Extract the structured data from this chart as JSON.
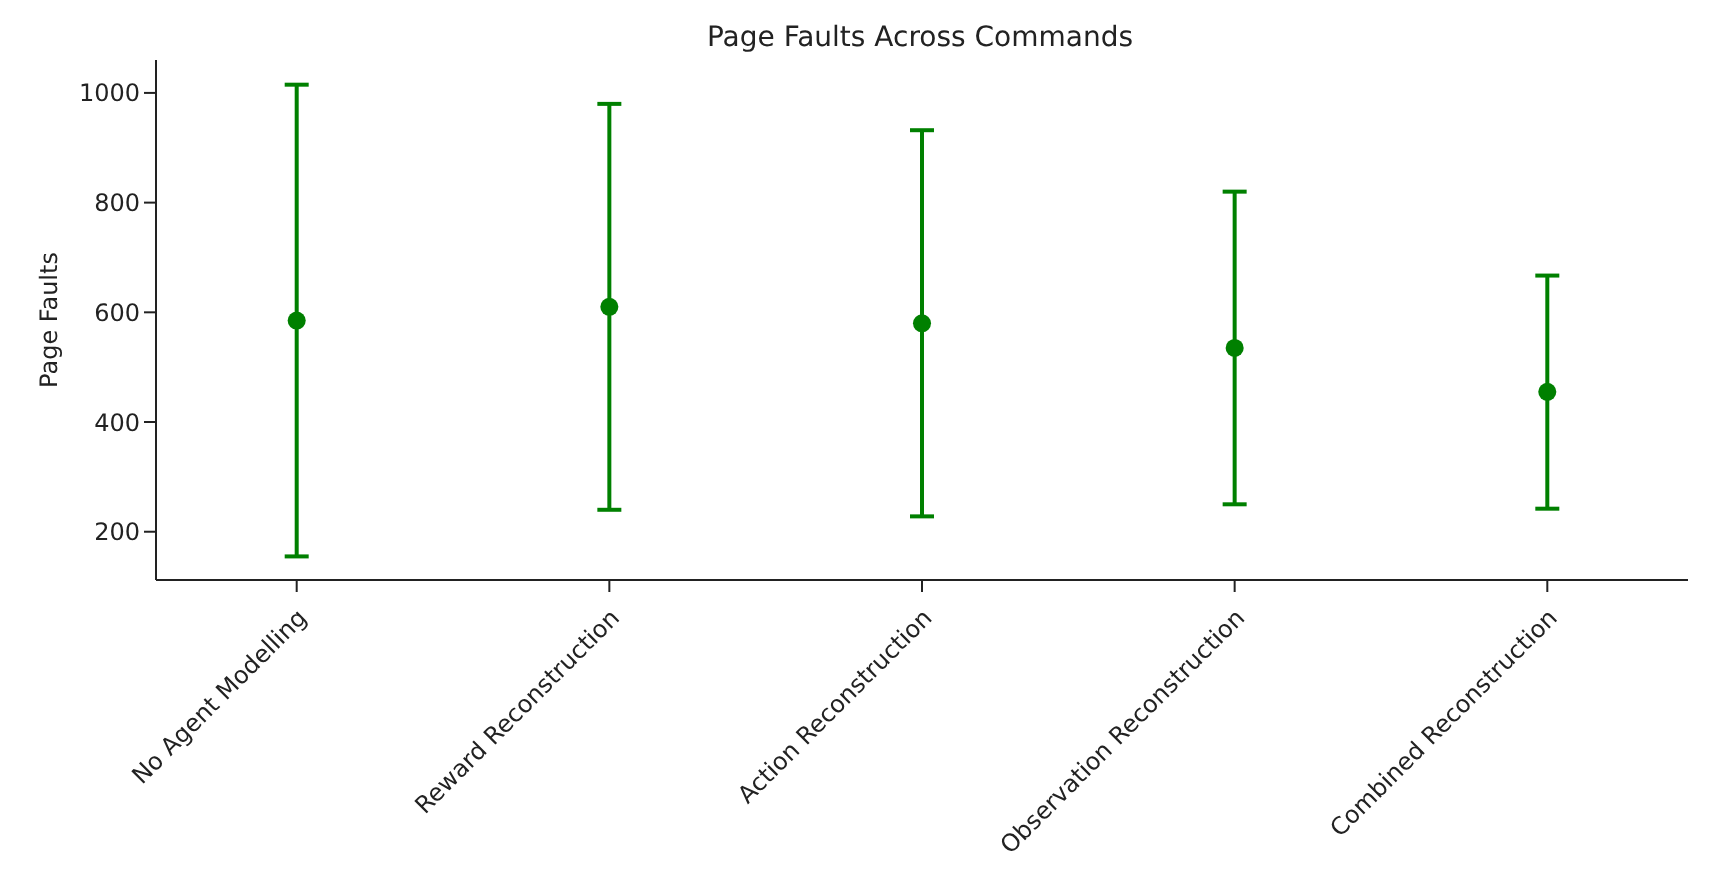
{
  "chart_data": {
    "type": "scatter",
    "title": "Page Faults Across Commands",
    "ylabel": "Page Faults",
    "categories": [
      "No Agent Modelling",
      "Reward Reconstruction",
      "Action Reconstruction",
      "Observation Reconstruction",
      "Combined Reconstruction"
    ],
    "series": [
      {
        "color": "#008000",
        "values": [
          585,
          610,
          580,
          535,
          455
        ],
        "errors": [
          [
            155,
            1015
          ],
          [
            240,
            980
          ],
          [
            228,
            932
          ],
          [
            250,
            820
          ],
          [
            242,
            667
          ]
        ]
      }
    ],
    "ylim": [
      112,
      1060
    ],
    "yticks": [
      200,
      400,
      600,
      800,
      1000
    ],
    "marker": "circle",
    "grid": false,
    "legend": false
  }
}
